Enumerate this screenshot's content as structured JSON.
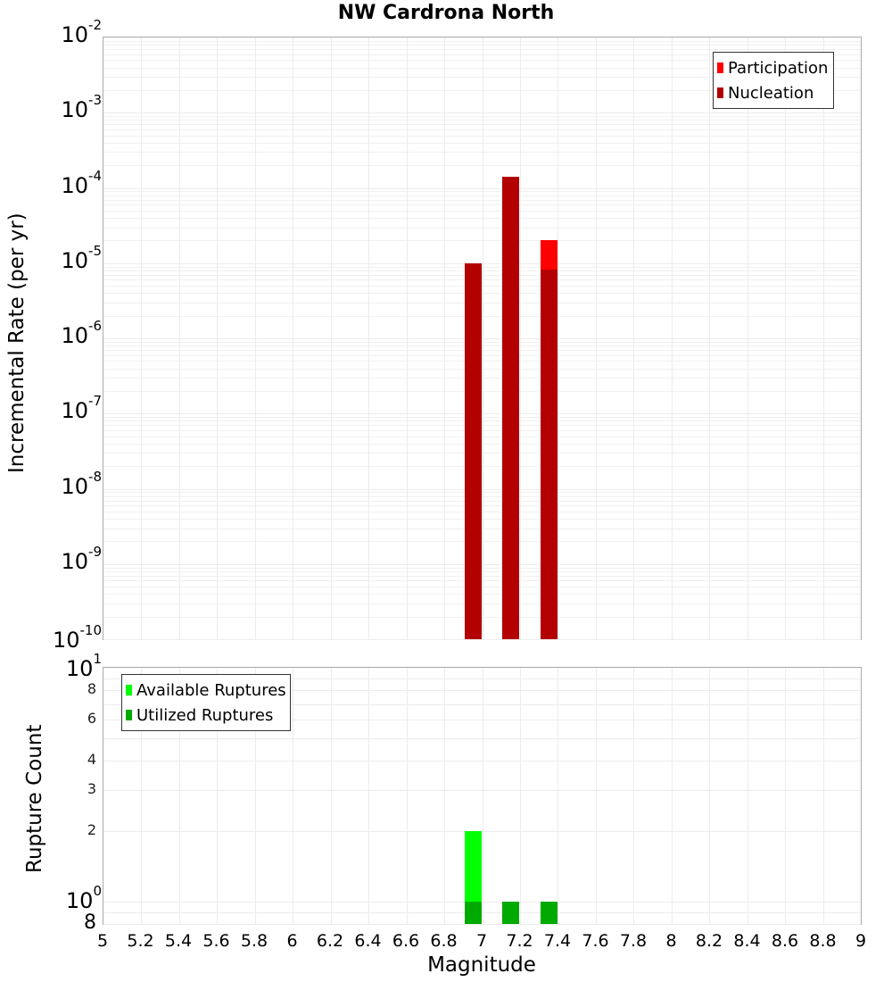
{
  "title": "NW Cardrona North",
  "colors": {
    "participation": "#ff0000",
    "nucleation": "#b30000",
    "available": "#00ff00",
    "utilized": "#00aa00",
    "grid": "#ececec",
    "frame": "#aaaaaa"
  },
  "top_plot": {
    "ylabel": "Incremental Rate (per yr)",
    "yticks": [
      {
        "base": "10",
        "exp": "-2"
      },
      {
        "base": "10",
        "exp": "-3"
      },
      {
        "base": "10",
        "exp": "-4"
      },
      {
        "base": "10",
        "exp": "-5"
      },
      {
        "base": "10",
        "exp": "-6"
      },
      {
        "base": "10",
        "exp": "-7"
      },
      {
        "base": "10",
        "exp": "-8"
      },
      {
        "base": "10",
        "exp": "-9"
      },
      {
        "base": "10",
        "exp": "-10"
      }
    ],
    "legend": [
      {
        "label": "Participation",
        "color": "#ff0000"
      },
      {
        "label": "Nucleation",
        "color": "#b30000"
      }
    ]
  },
  "bottom_plot": {
    "ylabel": "Rupture Count",
    "yticks_major": [
      {
        "base": "10",
        "exp": "1"
      },
      {
        "base": "10",
        "exp": "0"
      }
    ],
    "yticks_minor": [
      "8",
      "6",
      "4",
      "3",
      "2"
    ],
    "ytick_bottom": "8",
    "legend": [
      {
        "label": "Available Ruptures",
        "color": "#00ff00"
      },
      {
        "label": "Utilized Ruptures",
        "color": "#00aa00"
      }
    ]
  },
  "xaxis": {
    "label": "Magnitude",
    "ticks": [
      "5",
      "5.2",
      "5.4",
      "5.6",
      "5.8",
      "6",
      "6.2",
      "6.4",
      "6.6",
      "6.8",
      "7",
      "7.2",
      "7.4",
      "7.6",
      "7.8",
      "8",
      "8.2",
      "8.4",
      "8.6",
      "8.8",
      "9"
    ]
  },
  "chart_data": [
    {
      "type": "bar",
      "title": "NW Cardrona North",
      "xlabel": "Magnitude",
      "ylabel": "Incremental Rate (per yr)",
      "yscale": "log",
      "xlim": [
        5,
        9
      ],
      "ylim": [
        1e-10,
        0.01
      ],
      "grid": true,
      "legend_position": "upper right",
      "x": [
        6.95,
        7.15,
        7.35
      ],
      "series": [
        {
          "name": "Participation",
          "color": "#ff0000",
          "values": [
            1e-05,
            0.00014,
            2e-05
          ]
        },
        {
          "name": "Nucleation",
          "color": "#b30000",
          "values": [
            1e-05,
            0.00014,
            8.3e-06
          ]
        }
      ]
    },
    {
      "type": "bar",
      "xlabel": "Magnitude",
      "ylabel": "Rupture Count",
      "yscale": "log",
      "xlim": [
        5,
        9
      ],
      "ylim": [
        0.8,
        10
      ],
      "grid": true,
      "legend_position": "upper left",
      "x": [
        6.95,
        7.15,
        7.35
      ],
      "series": [
        {
          "name": "Available Ruptures",
          "color": "#00ff00",
          "values": [
            2,
            1,
            1
          ]
        },
        {
          "name": "Utilized Ruptures",
          "color": "#00aa00",
          "values": [
            1,
            1,
            1
          ]
        }
      ]
    }
  ]
}
